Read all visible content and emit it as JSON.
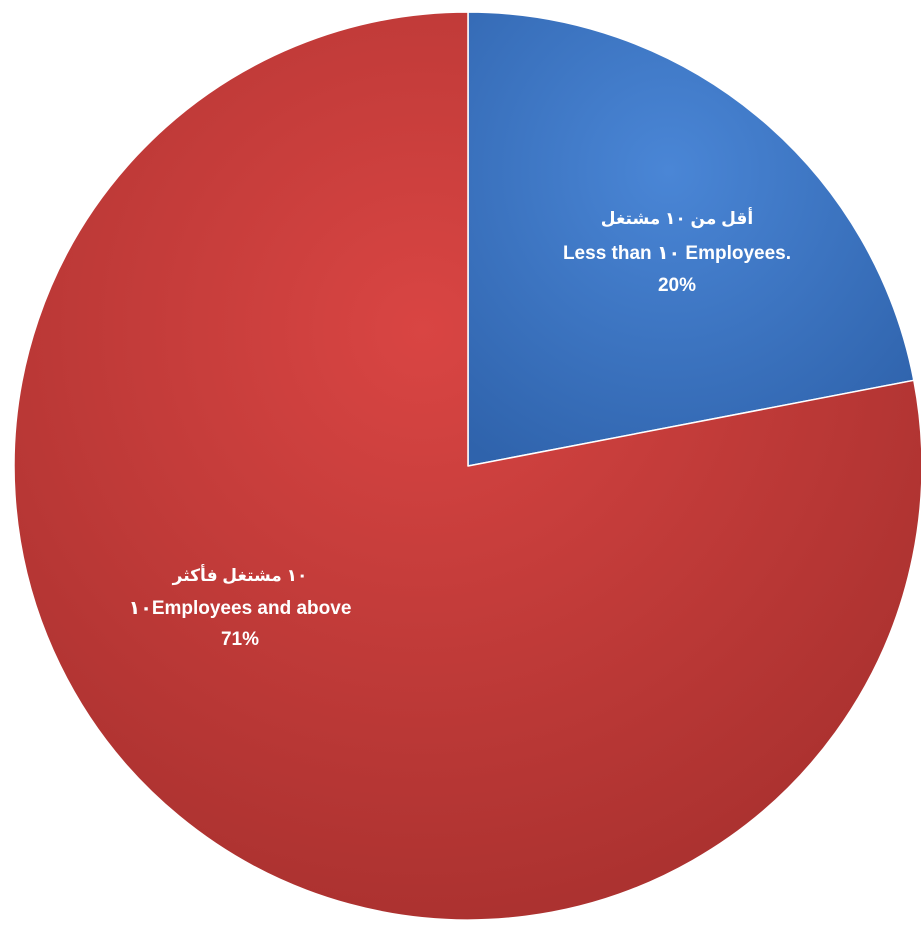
{
  "chart_data": {
    "type": "pie",
    "title": "",
    "slices": [
      {
        "label_ar": "أقل من ١٠ مشتغل",
        "label_en": "Less than ١٠ Employees.",
        "percent_label": "20%",
        "value": 20,
        "color": "#3e78c6"
      },
      {
        "label_ar": "١٠ مشتغل فأكثر",
        "label_en": "١٠Employees and above",
        "percent_label": "71%",
        "value": 71,
        "color": "#c23a38"
      }
    ]
  }
}
